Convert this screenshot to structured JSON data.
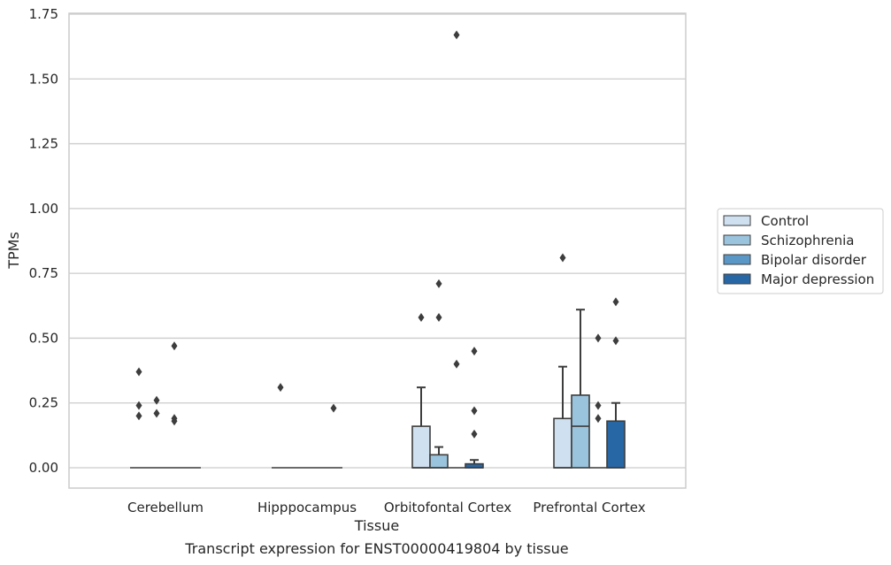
{
  "chart_data": {
    "type": "box",
    "title": "",
    "caption": "Transcript expression for ENST00000419804 by tissue",
    "xlabel": "Tissue",
    "ylabel": "TPMs",
    "ylim": [
      -0.08,
      1.76
    ],
    "yticks": [
      "0.00",
      "0.25",
      "0.50",
      "0.75",
      "1.00",
      "1.25",
      "1.50",
      "1.75"
    ],
    "ytick_values": [
      0,
      0.25,
      0.5,
      0.75,
      1.0,
      1.25,
      1.5,
      1.75
    ],
    "grid": "horizontal",
    "legend_position": "right",
    "categories": [
      "Cerebellum",
      "Hipppocampus",
      "Orbitofontal Cortex",
      "Prefrontal Cortex"
    ],
    "series": [
      {
        "name": "Control",
        "color": "#cfe0f0",
        "boxes": [
          {
            "q1": 0,
            "median": 0,
            "q3": 0,
            "whisker_low": 0,
            "whisker_high": 0,
            "outliers": [
              0.37,
              0.24,
              0.2
            ]
          },
          {
            "q1": 0,
            "median": 0,
            "q3": 0,
            "whisker_low": 0,
            "whisker_high": 0,
            "outliers": [
              0.31
            ]
          },
          {
            "q1": 0,
            "median": 0,
            "q3": 0.16,
            "whisker_low": 0,
            "whisker_high": 0.31,
            "outliers": [
              0.58
            ]
          },
          {
            "q1": 0,
            "median": 0,
            "q3": 0.19,
            "whisker_low": 0,
            "whisker_high": 0.39,
            "outliers": [
              0.81
            ]
          }
        ]
      },
      {
        "name": "Schizophrenia",
        "color": "#9ac4dd",
        "boxes": [
          {
            "q1": 0,
            "median": 0,
            "q3": 0,
            "whisker_low": 0,
            "whisker_high": 0,
            "outliers": [
              0.26,
              0.21
            ]
          },
          {
            "q1": 0,
            "median": 0,
            "q3": 0,
            "whisker_low": 0,
            "whisker_high": 0,
            "outliers": []
          },
          {
            "q1": 0,
            "median": 0,
            "q3": 0.05,
            "whisker_low": 0,
            "whisker_high": 0.08,
            "outliers": [
              0.71,
              0.58
            ]
          },
          {
            "q1": 0,
            "median": 0.16,
            "q3": 0.28,
            "whisker_low": 0,
            "whisker_high": 0.61,
            "outliers": []
          }
        ]
      },
      {
        "name": "Bipolar disorder",
        "color": "#5b97c6",
        "boxes": [
          {
            "q1": 0,
            "median": 0,
            "q3": 0,
            "whisker_low": 0,
            "whisker_high": 0,
            "outliers": [
              0.47,
              0.19,
              0.18
            ]
          },
          {
            "q1": 0,
            "median": 0,
            "q3": 0,
            "whisker_low": 0,
            "whisker_high": 0,
            "outliers": []
          },
          {
            "q1": 0,
            "median": 0,
            "q3": 0,
            "whisker_low": 0,
            "whisker_high": 0,
            "outliers": [
              1.67,
              0.4
            ]
          },
          {
            "q1": 0,
            "median": 0,
            "q3": 0,
            "whisker_low": 0,
            "whisker_high": 0,
            "outliers": [
              0.5,
              0.24,
              0.19
            ]
          }
        ]
      },
      {
        "name": "Major depression",
        "color": "#2767a6",
        "boxes": [
          {
            "q1": 0,
            "median": 0,
            "q3": 0,
            "whisker_low": 0,
            "whisker_high": 0,
            "outliers": []
          },
          {
            "q1": 0,
            "median": 0,
            "q3": 0,
            "whisker_low": 0,
            "whisker_high": 0,
            "outliers": [
              0.23
            ]
          },
          {
            "q1": 0,
            "median": 0,
            "q3": 0.015,
            "whisker_low": 0,
            "whisker_high": 0.03,
            "outliers": [
              0.45,
              0.22,
              0.13
            ]
          },
          {
            "q1": 0,
            "median": 0,
            "q3": 0.18,
            "whisker_low": 0,
            "whisker_high": 0.25,
            "outliers": [
              0.64,
              0.49
            ]
          }
        ]
      }
    ]
  }
}
